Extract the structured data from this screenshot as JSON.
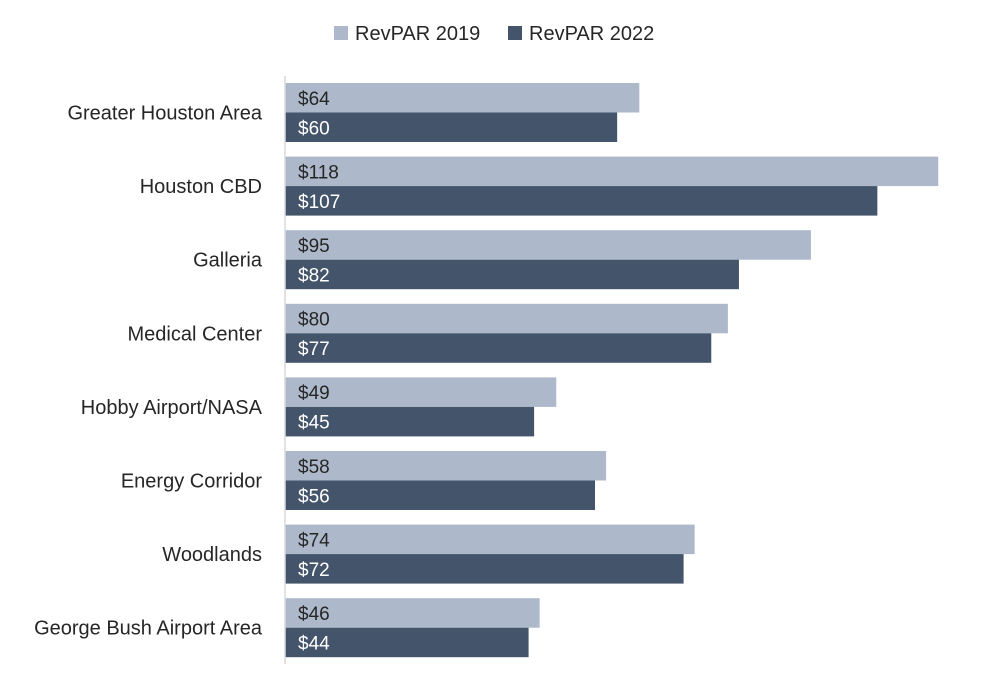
{
  "chart_data": {
    "type": "bar",
    "orientation": "horizontal",
    "title": "",
    "xlabel": "",
    "ylabel": "",
    "categories": [
      "Greater Houston Area",
      "Houston CBD",
      "Galleria",
      "Medical Center",
      "Hobby Airport/NASA",
      "Energy Corridor",
      "Woodlands",
      "George Bush Airport Area"
    ],
    "series": [
      {
        "name": "RevPAR 2019",
        "color": "#adb9ca",
        "label_color": "#262626",
        "values": [
          64,
          118,
          95,
          80,
          49,
          58,
          74,
          46
        ],
        "labels": [
          "$64",
          "$118",
          "$95",
          "$80",
          "$49",
          "$58",
          "$74",
          "$46"
        ]
      },
      {
        "name": "RevPAR 2022",
        "color": "#44546a",
        "label_color": "#ffffff",
        "values": [
          60,
          107,
          82,
          77,
          45,
          56,
          72,
          44
        ],
        "labels": [
          "$60",
          "$107",
          "$82",
          "$77",
          "$45",
          "$56",
          "$72",
          "$44"
        ]
      }
    ],
    "xlim": [
      0,
      125
    ],
    "grid": false,
    "legend_position": "top-center",
    "axis_color": "#d9d9d9"
  }
}
